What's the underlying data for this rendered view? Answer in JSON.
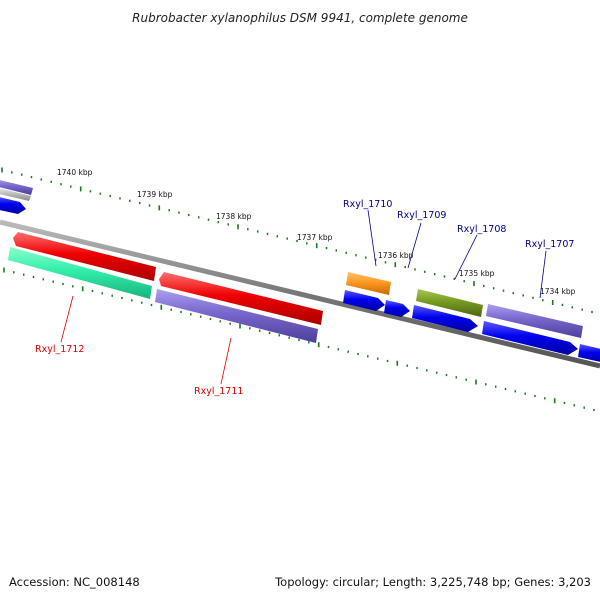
{
  "title": "Rubrobacter xylanophilus DSM 9941, complete genome",
  "footer": {
    "accession": "Accession: NC_008148",
    "summary": "Topology: circular; Length: 3,225,748 bp; Genes: 3,203"
  },
  "scale_labels": {
    "k1740": "1740 kbp",
    "k1739": "1739 kbp",
    "k1738": "1738 kbp",
    "k1737": "1737 kbp",
    "k1736": "1736 kbp",
    "k1735": "1735 kbp",
    "k1734": "1734 kbp"
  },
  "genes": {
    "rxyl_1712": {
      "label": "Rxyl_1712",
      "color": "#e00000"
    },
    "rxyl_1711": {
      "label": "Rxyl_1711",
      "color": "#e00000"
    },
    "rxyl_1710": {
      "label": "Rxyl_1710",
      "color": "#00008b"
    },
    "rxyl_1709": {
      "label": "Rxyl_1709",
      "color": "#00008b"
    },
    "rxyl_1708": {
      "label": "Rxyl_1708",
      "color": "#00008b"
    },
    "rxyl_1707": {
      "label": "Rxyl_1707",
      "color": "#00008b"
    }
  },
  "colors": {
    "backbone": "#808080",
    "ticks": "#1a7a1a",
    "red": "#e00000",
    "blue": "#0000ee",
    "purple": "#7766cc",
    "teal": "#33eeaa",
    "orange": "#ff9922",
    "olive": "#779922",
    "grey": "#bbbbbb"
  }
}
